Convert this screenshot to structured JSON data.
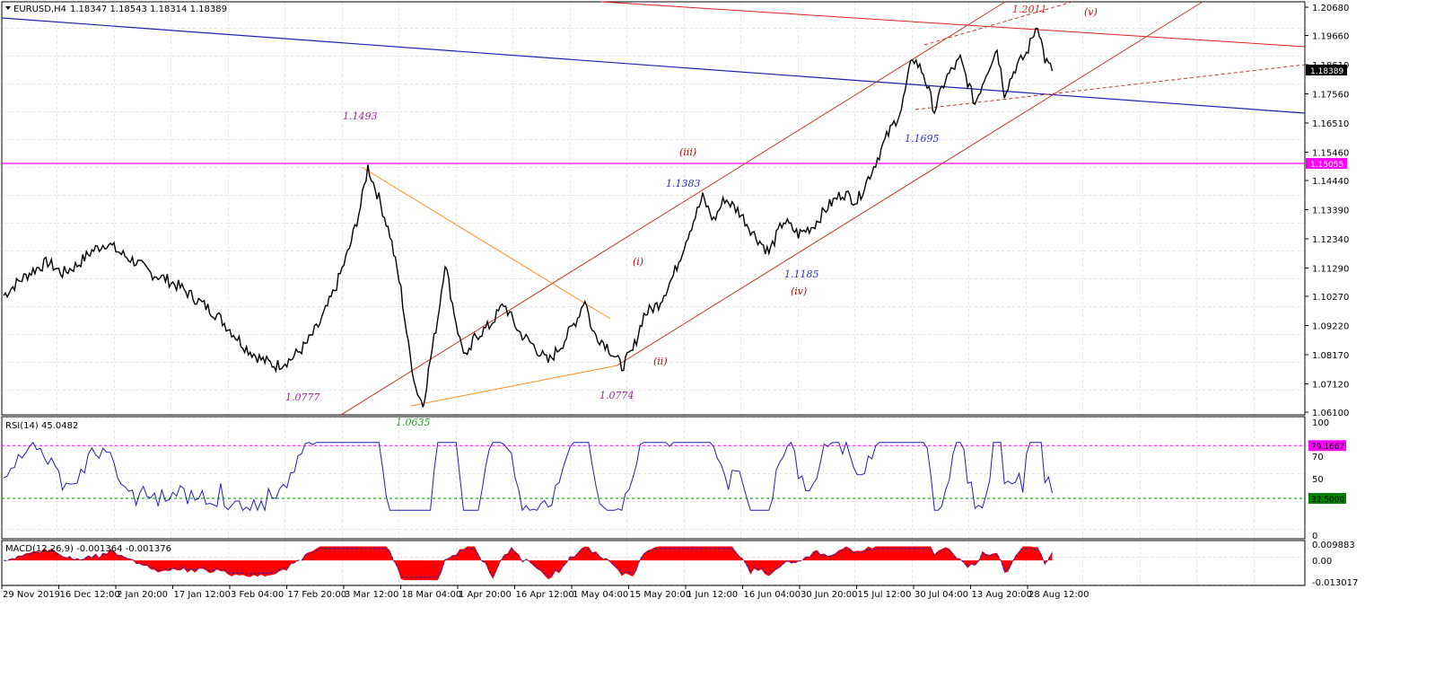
{
  "chart_data": [
    {
      "type": "line",
      "pane": "main",
      "symbol_caption": "EURUSD,H4",
      "ohlc_caption": "1.18347 1.18543 1.18314 1.18389",
      "ylim": [
        1.061,
        1.2068
      ],
      "y_ticks": [
        "1.20680",
        "1.19660",
        "1.18610",
        "1.17560",
        "1.16510",
        "1.15460",
        "1.14440",
        "1.13390",
        "1.12340",
        "1.11290",
        "1.10270",
        "1.09220",
        "1.08170",
        "1.07120",
        "1.06100"
      ],
      "x_labels": [
        "29 Nov 2019",
        "16 Dec 12:00",
        "2 Jan 20:00",
        "17 Jan 12:00",
        "3 Feb 04:00",
        "17 Feb 20:00",
        "3 Mar 12:00",
        "18 Mar 04:00",
        "1 Apr 20:00",
        "16 Apr 12:00",
        "1 May 04:00",
        "15 May 20:00",
        "1 Jun 12:00",
        "16 Jun 04:00",
        "30 Jun 20:00",
        "15 Jul 12:00",
        "30 Jul 04:00",
        "13 Aug 20:00",
        "28 Aug 12:00"
      ],
      "price_path": [
        [
          0,
          1.103
        ],
        [
          0.02,
          1.108
        ],
        [
          0.04,
          1.112
        ],
        [
          0.06,
          1.115
        ],
        [
          0.08,
          1.111
        ],
        [
          0.1,
          1.114
        ],
        [
          0.12,
          1.119
        ],
        [
          0.14,
          1.122
        ],
        [
          0.16,
          1.118
        ],
        [
          0.18,
          1.115
        ],
        [
          0.2,
          1.111
        ],
        [
          0.22,
          1.109
        ],
        [
          0.24,
          1.106
        ],
        [
          0.26,
          1.102
        ],
        [
          0.27,
          1.1
        ],
        [
          0.29,
          1.096
        ],
        [
          0.31,
          1.09
        ],
        [
          0.33,
          1.084
        ],
        [
          0.35,
          1.08
        ],
        [
          0.37,
          1.0777
        ],
        [
          0.39,
          1.08
        ],
        [
          0.41,
          1.085
        ],
        [
          0.43,
          1.093
        ],
        [
          0.45,
          1.105
        ],
        [
          0.47,
          1.12
        ],
        [
          0.485,
          1.135
        ],
        [
          0.495,
          1.1493
        ],
        [
          0.51,
          1.138
        ],
        [
          0.525,
          1.125
        ],
        [
          0.54,
          1.105
        ],
        [
          0.55,
          1.085
        ],
        [
          0.56,
          1.07
        ],
        [
          0.57,
          1.0635
        ],
        [
          0.58,
          1.08
        ],
        [
          0.59,
          1.095
        ],
        [
          0.6,
          1.115
        ],
        [
          0.61,
          1.1
        ],
        [
          0.62,
          1.087
        ],
        [
          0.63,
          1.08
        ],
        [
          0.64,
          1.088
        ],
        [
          0.66,
          1.092
        ],
        [
          0.68,
          1.1
        ],
        [
          0.7,
          1.09
        ],
        [
          0.72,
          1.085
        ],
        [
          0.74,
          1.079
        ],
        [
          0.76,
          1.086
        ],
        [
          0.78,
          1.095
        ],
        [
          0.79,
          1.102
        ],
        [
          0.8,
          1.09
        ],
        [
          0.82,
          1.085
        ],
        [
          0.84,
          1.0774
        ],
        [
          0.855,
          1.083
        ],
        [
          0.87,
          1.096
        ],
        [
          0.89,
          1.1
        ],
        [
          0.91,
          1.11
        ],
        [
          0.93,
          1.125
        ],
        [
          0.95,
          1.1383
        ],
        [
          0.965,
          1.13
        ],
        [
          0.98,
          1.138
        ],
        [
          1.0,
          1.133
        ],
        [
          1.02,
          1.125
        ],
        [
          1.04,
          1.1185
        ],
        [
          1.06,
          1.13
        ],
        [
          1.08,
          1.125
        ],
        [
          1.1,
          1.128
        ],
        [
          1.12,
          1.135
        ],
        [
          1.14,
          1.14
        ],
        [
          1.16,
          1.137
        ],
        [
          1.18,
          1.148
        ],
        [
          1.2,
          1.16
        ],
        [
          1.22,
          1.17
        ],
        [
          1.235,
          1.189
        ],
        [
          1.25,
          1.183
        ],
        [
          1.265,
          1.1695
        ],
        [
          1.28,
          1.181
        ],
        [
          1.3,
          1.188
        ],
        [
          1.32,
          1.172
        ],
        [
          1.335,
          1.183
        ],
        [
          1.35,
          1.192
        ],
        [
          1.36,
          1.176
        ],
        [
          1.375,
          1.185
        ],
        [
          1.39,
          1.19
        ],
        [
          1.405,
          1.2011
        ],
        [
          1.415,
          1.188
        ],
        [
          1.425,
          1.1838
        ]
      ],
      "wave_labels": [
        {
          "text": "1.1493",
          "color": "#a020a0"
        },
        {
          "text": "1.0777",
          "color": "#a020a0"
        },
        {
          "text": "1.0635",
          "color": "#1f9e1f"
        },
        {
          "text": "1.0774",
          "color": "#a020a0"
        },
        {
          "text": "1.1383",
          "color": "#3030c0"
        },
        {
          "text": "1.1185",
          "color": "#3030c0"
        },
        {
          "text": "1.1695",
          "color": "#3030c0"
        },
        {
          "text": "1.2011",
          "color": "#e02020"
        },
        {
          "text": "(iii)",
          "color": "#c00000"
        },
        {
          "text": "(i)",
          "color": "#c00000"
        },
        {
          "text": "(ii)",
          "color": "#c00000"
        },
        {
          "text": "(iv)",
          "color": "#c00000"
        },
        {
          "text": "(v)",
          "color": "#c00000"
        }
      ],
      "price_tags": [
        {
          "text": "1.18389",
          "bg": "#000000",
          "fg": "#ffffff"
        },
        {
          "text": "1.15055",
          "bg": "#ff00ff",
          "fg": "#ffffff"
        }
      ],
      "colors": {
        "price": "#000000",
        "channel": "#c0392b",
        "blue_line": "#1f1fb4",
        "magenta_line": "#ff00ff",
        "orange_lines": "#ff8c1a",
        "grid": "#c8c8c8"
      }
    },
    {
      "type": "line",
      "pane": "rsi",
      "caption": "RSI(14) 45.0482",
      "ylim": [
        0,
        100
      ],
      "y_ticks": [
        "100",
        "70",
        "50",
        "0"
      ],
      "levels": [
        {
          "text": "79.1667",
          "value": 79.1667,
          "color": "#ff00ff"
        },
        {
          "text": "32.5000",
          "value": 32.5,
          "color": "#008000"
        }
      ],
      "color": "#1f1fb4"
    },
    {
      "type": "area",
      "pane": "macd",
      "caption": "MACD(12,26,9) -0.001364 -0.001376",
      "ylim": [
        -0.013017,
        0.009883
      ],
      "y_ticks": [
        "0.009883",
        "0.00",
        "-0.013017"
      ],
      "colors": {
        "histogram": "#ff0000",
        "signal": "#1f1fb4"
      }
    }
  ]
}
